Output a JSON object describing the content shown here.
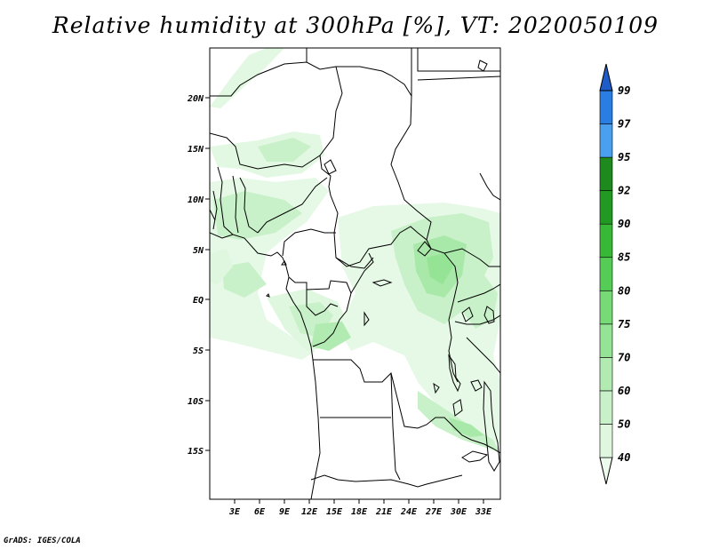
{
  "title": "Relative humidity at 300hPa [%], VT: 2020050109",
  "credit": "GrADS: IGES/COLA",
  "map": {
    "variable": "Relative humidity",
    "level": "300hPa",
    "units": "%",
    "valid_time": "2020050109",
    "lon_range": [
      0,
      35
    ],
    "lat_range": [
      -20,
      25
    ],
    "x_ticks": [
      "3E",
      "6E",
      "9E",
      "12E",
      "15E",
      "18E",
      "21E",
      "24E",
      "27E",
      "30E",
      "33E"
    ],
    "y_ticks": [
      "20N",
      "15N",
      "10N",
      "5N",
      "EQ",
      "5S",
      "10S",
      "15S"
    ]
  },
  "colorbar": {
    "levels": [
      "40",
      "50",
      "60",
      "70",
      "75",
      "80",
      "85",
      "90",
      "92",
      "95",
      "97",
      "99"
    ],
    "colors": [
      "#eefcee",
      "#dff7df",
      "#c9f1c9",
      "#b2ebb2",
      "#95e395",
      "#76da76",
      "#55cc55",
      "#37b837",
      "#229922",
      "#1e8a1e",
      "#4aa0ef",
      "#2a7de1",
      "#1e5cc8"
    ]
  }
}
